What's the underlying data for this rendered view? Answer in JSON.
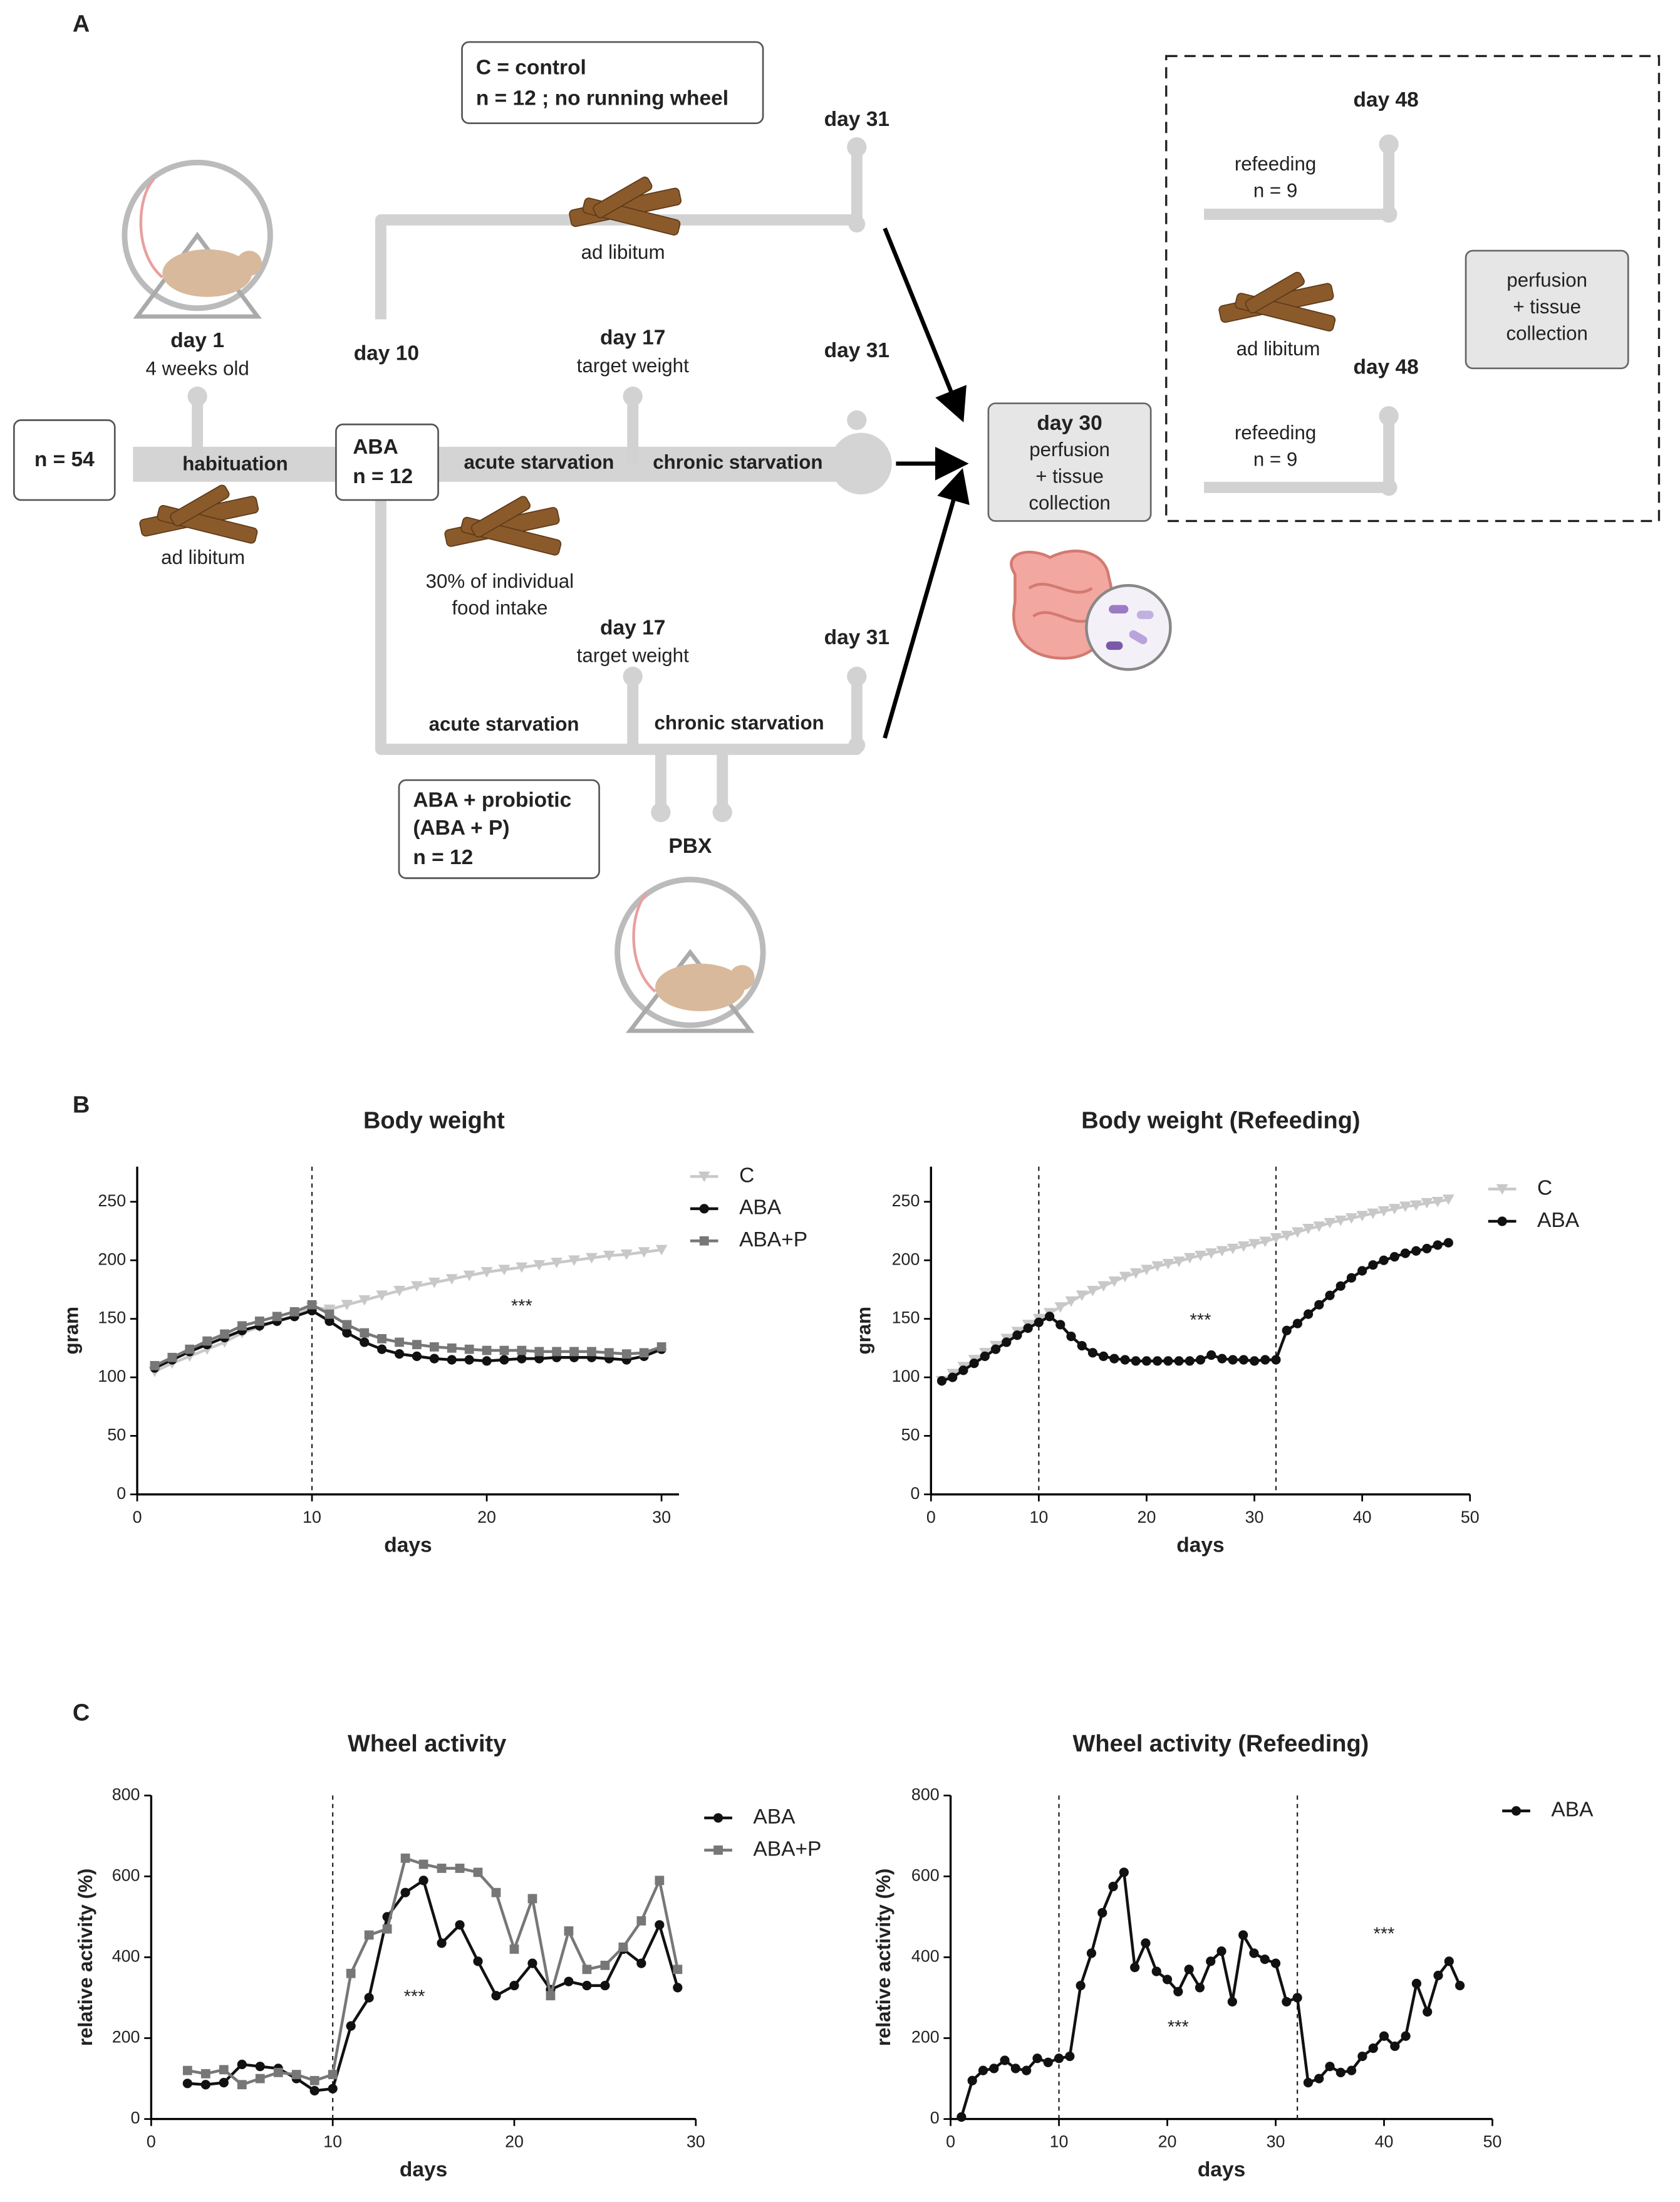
{
  "diagram": {
    "texts": [
      "A",
      "C = control",
      "n = 12 ; no running wheel",
      "day 31",
      "ad libitum",
      "day 1",
      "4 weeks old",
      "day 10",
      "day 17",
      "target weight",
      "day 31",
      "n = 54",
      "habituation",
      "ABA",
      "n = 12",
      "acute starvation",
      "chronic starvation",
      "ad libitum",
      "30% of individual",
      "food intake",
      "day 17",
      "target weight",
      "day 31",
      "acute starvation",
      "chronic starvation",
      "ABA + probiotic",
      "(ABA + P)",
      "n = 12",
      "PBX",
      "day 30",
      "perfusion",
      "+ tissue",
      "collection",
      "day 48",
      "refeeding",
      "n = 9",
      "ad libitum",
      "day 48",
      "refeeding",
      "n = 9",
      "perfusion",
      "+ tissue",
      "collection",
      "B",
      "C"
    ]
  },
  "chart_data": [
    {
      "type": "line",
      "title": "Body weight",
      "x_label": "days",
      "y_label": "gram",
      "x": [
        1,
        2,
        3,
        4,
        5,
        6,
        7,
        8,
        9,
        10,
        11,
        12,
        13,
        14,
        15,
        16,
        17,
        18,
        19,
        20,
        21,
        22,
        23,
        24,
        25,
        26,
        27,
        28,
        29,
        30
      ],
      "xlim": [
        0,
        31
      ],
      "xticks": [
        0,
        10,
        20,
        30
      ],
      "ylim": [
        0,
        280
      ],
      "yticks": [
        0,
        50,
        100,
        150,
        200,
        250
      ],
      "vlines": [
        10
      ],
      "annotations": [
        {
          "text": "***",
          "x": 22,
          "y": 160
        }
      ],
      "series": [
        {
          "name": "C",
          "color": "#c8c8c8",
          "marker": "triangle-down",
          "values": [
            105,
            112,
            118,
            124,
            130,
            138,
            143,
            148,
            153,
            160,
            158,
            162,
            166,
            170,
            174,
            178,
            181,
            184,
            187,
            190,
            192,
            194,
            196,
            198,
            200,
            202,
            204,
            205,
            207,
            209
          ]
        },
        {
          "name": "ABA",
          "color": "#111111",
          "marker": "circle",
          "values": [
            108,
            115,
            122,
            128,
            134,
            140,
            144,
            148,
            152,
            157,
            148,
            138,
            130,
            124,
            120,
            118,
            116,
            115,
            115,
            114,
            115,
            116,
            116,
            117,
            117,
            117,
            116,
            115,
            118,
            124
          ]
        },
        {
          "name": "ABA+P",
          "color": "#777777",
          "marker": "square",
          "values": [
            110,
            117,
            124,
            131,
            137,
            144,
            148,
            152,
            156,
            162,
            154,
            145,
            138,
            133,
            130,
            128,
            126,
            125,
            124,
            123,
            123,
            123,
            122,
            122,
            122,
            122,
            121,
            120,
            121,
            126
          ]
        }
      ]
    },
    {
      "type": "line",
      "title": "Body weight (Refeeding)",
      "x_label": "days",
      "y_label": "gram",
      "x": [
        1,
        2,
        3,
        4,
        5,
        6,
        7,
        8,
        9,
        10,
        11,
        12,
        13,
        14,
        15,
        16,
        17,
        18,
        19,
        20,
        21,
        22,
        23,
        24,
        25,
        26,
        27,
        28,
        29,
        30,
        31,
        32,
        33,
        34,
        35,
        36,
        37,
        38,
        39,
        40,
        41,
        42,
        43,
        44,
        45,
        46,
        47,
        48
      ],
      "xlim": [
        0,
        50
      ],
      "xticks": [
        0,
        10,
        20,
        30,
        40,
        50
      ],
      "ylim": [
        0,
        280
      ],
      "yticks": [
        0,
        50,
        100,
        150,
        200,
        250
      ],
      "vlines": [
        10,
        32
      ],
      "annotations": [
        {
          "text": "***",
          "x": 25,
          "y": 148
        }
      ],
      "series": [
        {
          "name": "C",
          "color": "#c8c8c8",
          "marker": "triangle-down",
          "values": [
            97,
            103,
            109,
            115,
            121,
            127,
            133,
            139,
            145,
            150,
            155,
            160,
            165,
            170,
            174,
            178,
            182,
            186,
            189,
            192,
            195,
            197,
            199,
            202,
            204,
            206,
            208,
            210,
            212,
            214,
            216,
            219,
            221,
            224,
            227,
            229,
            232,
            234,
            236,
            238,
            240,
            242,
            244,
            246,
            247,
            249,
            250,
            252
          ]
        },
        {
          "name": "ABA",
          "color": "#111111",
          "marker": "circle",
          "values": [
            97,
            100,
            106,
            112,
            118,
            124,
            130,
            136,
            142,
            147,
            152,
            145,
            135,
            127,
            121,
            118,
            116,
            115,
            114,
            114,
            114,
            114,
            114,
            114,
            115,
            119,
            116,
            115,
            115,
            114,
            115,
            115,
            140,
            146,
            154,
            162,
            170,
            178,
            185,
            191,
            196,
            200,
            203,
            206,
            208,
            210,
            213,
            215
          ]
        }
      ]
    },
    {
      "type": "line",
      "title": "Wheel activity",
      "x_label": "days",
      "y_label": "relative activity (%)",
      "x": [
        2,
        3,
        4,
        5,
        6,
        7,
        8,
        9,
        10,
        11,
        12,
        13,
        14,
        15,
        16,
        17,
        18,
        19,
        20,
        21,
        22,
        23,
        24,
        25,
        26,
        27,
        28,
        29
      ],
      "xlim": [
        0,
        30
      ],
      "xticks": [
        0,
        10,
        20,
        30
      ],
      "ylim": [
        0,
        800
      ],
      "yticks": [
        0,
        200,
        400,
        600,
        800
      ],
      "vlines": [
        10
      ],
      "annotations": [
        {
          "text": "***",
          "x": 14.5,
          "y": 300
        }
      ],
      "series": [
        {
          "name": "ABA",
          "color": "#111111",
          "marker": "circle",
          "values": [
            88,
            85,
            90,
            135,
            130,
            125,
            100,
            70,
            75,
            230,
            300,
            500,
            560,
            590,
            435,
            480,
            390,
            305,
            330,
            385,
            320,
            340,
            330,
            330,
            420,
            385,
            480,
            325
          ]
        },
        {
          "name": "ABA+P",
          "color": "#777777",
          "marker": "square",
          "values": [
            120,
            112,
            122,
            85,
            100,
            115,
            110,
            95,
            110,
            360,
            455,
            470,
            645,
            630,
            620,
            620,
            610,
            560,
            420,
            545,
            305,
            465,
            370,
            380,
            425,
            490,
            590,
            370
          ]
        }
      ]
    },
    {
      "type": "line",
      "title": "Wheel activity (Refeeding)",
      "x_label": "days",
      "y_label": "relative activity (%)",
      "x": [
        1,
        2,
        3,
        4,
        5,
        6,
        7,
        8,
        9,
        10,
        11,
        12,
        13,
        14,
        15,
        16,
        17,
        18,
        19,
        20,
        21,
        22,
        23,
        24,
        25,
        26,
        27,
        28,
        29,
        30,
        31,
        32,
        33,
        34,
        35,
        36,
        37,
        38,
        39,
        40,
        41,
        42,
        43,
        44,
        45,
        46,
        47
      ],
      "xlim": [
        0,
        50
      ],
      "xticks": [
        0,
        10,
        20,
        30,
        40,
        50
      ],
      "ylim": [
        0,
        800
      ],
      "yticks": [
        0,
        200,
        400,
        600,
        800
      ],
      "vlines": [
        10,
        32
      ],
      "annotations": [
        {
          "text": "***",
          "x": 21,
          "y": 225
        },
        {
          "text": "***",
          "x": 40,
          "y": 455
        }
      ],
      "series": [
        {
          "name": "ABA",
          "color": "#111111",
          "marker": "circle",
          "values": [
            5,
            95,
            120,
            125,
            145,
            125,
            120,
            150,
            140,
            150,
            155,
            330,
            410,
            510,
            575,
            610,
            375,
            435,
            365,
            345,
            315,
            370,
            325,
            390,
            415,
            290,
            455,
            410,
            395,
            385,
            290,
            300,
            90,
            100,
            130,
            115,
            120,
            155,
            175,
            205,
            180,
            205,
            335,
            265,
            355,
            390,
            330
          ]
        }
      ]
    }
  ]
}
